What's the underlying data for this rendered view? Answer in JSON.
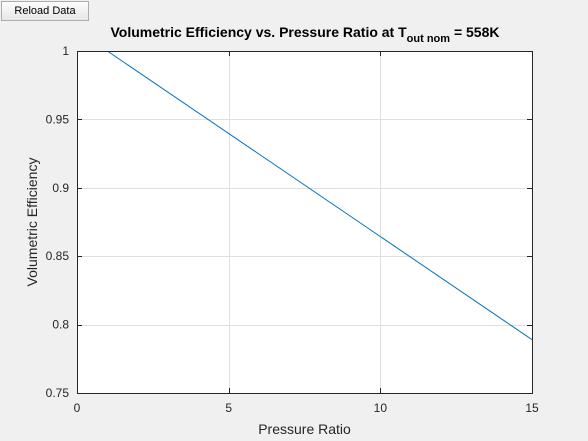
{
  "toolbar": {
    "reload_label": "Reload Data"
  },
  "chart_data": {
    "type": "line",
    "title": {
      "main": "Volumetric Efficiency vs. Pressure Ratio at T",
      "subscript": "out nom",
      "suffix": " = 558K"
    },
    "xlabel": "Pressure Ratio",
    "ylabel": "Volumetric Efficiency",
    "xlim": [
      0,
      15
    ],
    "ylim": [
      0.75,
      1
    ],
    "xticks": [
      0,
      5,
      10,
      15
    ],
    "yticks": [
      0.75,
      0.8,
      0.85,
      0.9,
      0.95,
      1
    ],
    "xtick_labels": [
      "0",
      "5",
      "10",
      "15"
    ],
    "ytick_labels": [
      "0.75",
      "0.8",
      "0.85",
      "0.9",
      "0.95",
      "1"
    ],
    "grid": true,
    "series": [
      {
        "color": "#0072bd",
        "x": [
          1,
          15
        ],
        "y": [
          1.0,
          0.789
        ]
      }
    ]
  }
}
